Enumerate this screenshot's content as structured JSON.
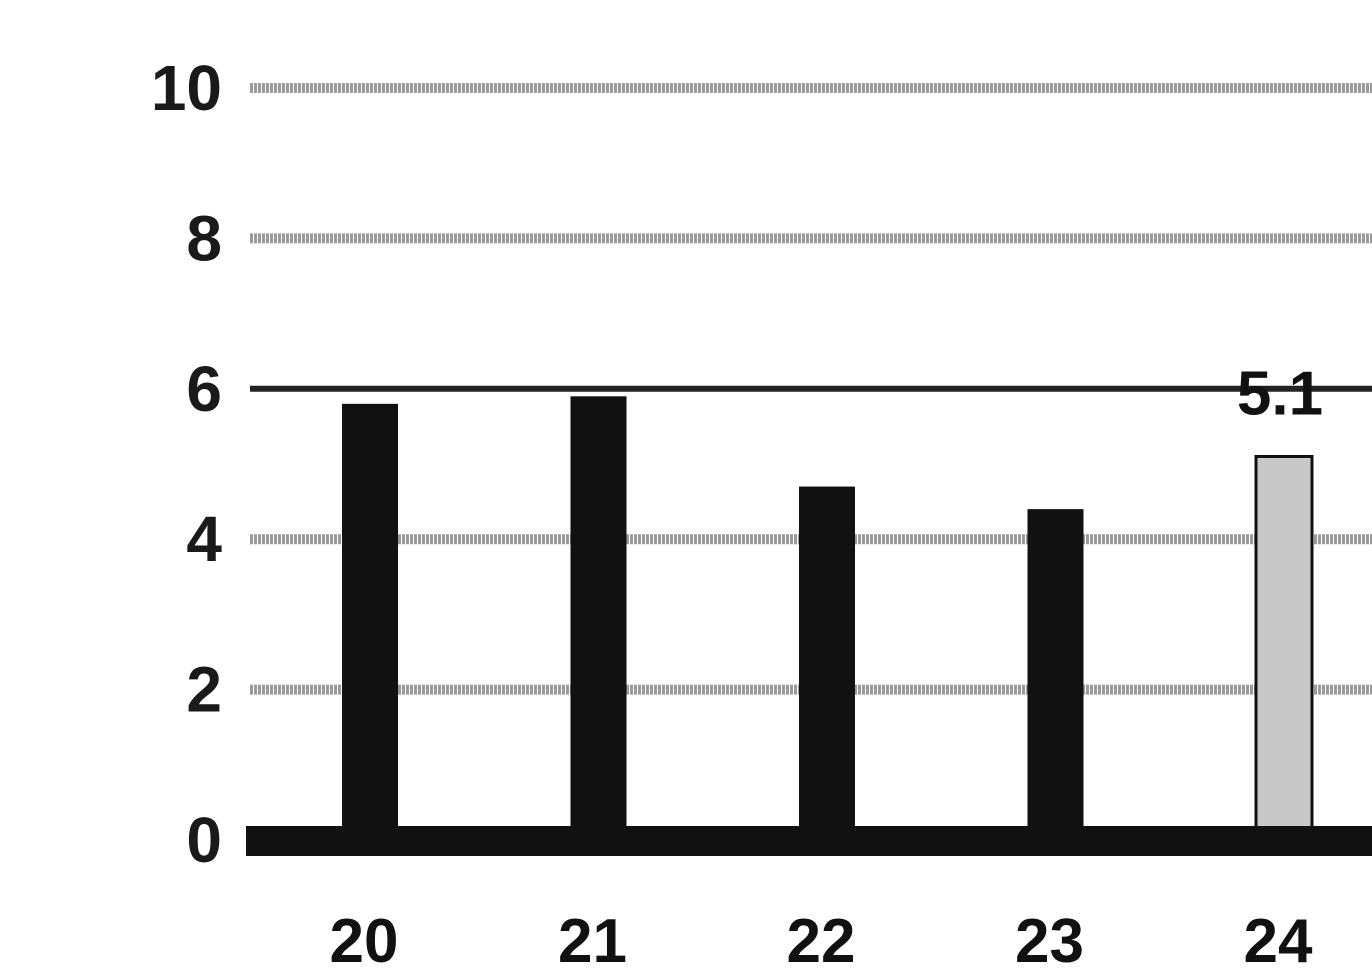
{
  "chart_data": {
    "type": "bar",
    "categories": [
      "20",
      "21",
      "22",
      "23",
      "24"
    ],
    "values": [
      5.8,
      5.9,
      4.7,
      4.4,
      5.1
    ],
    "data_labels": [
      null,
      null,
      null,
      null,
      "5.1"
    ],
    "highlight_index": 4,
    "ylim": [
      0,
      10
    ],
    "yticks": [
      "0",
      "2",
      "4",
      "6",
      "8",
      "10"
    ],
    "title": "",
    "xlabel": "",
    "ylabel": "",
    "grid": true,
    "colors": {
      "bar": "#111111",
      "highlight_bar": "#c8c8c8",
      "grid_light": "#9a9a9a",
      "grid_dark": "#222222",
      "baseline": "#111111"
    }
  }
}
